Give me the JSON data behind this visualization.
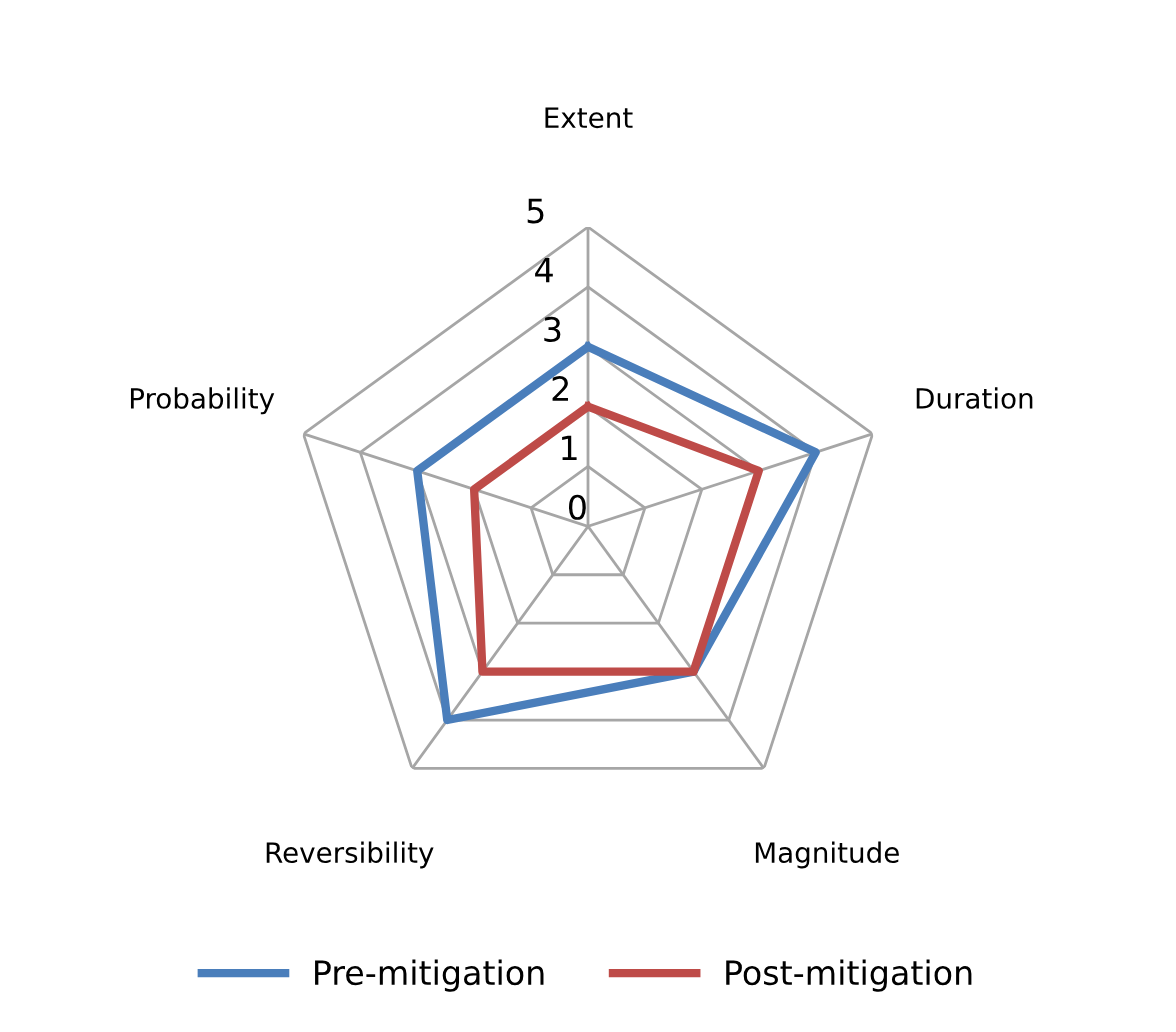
{
  "chart_data": {
    "type": "radar",
    "categories": [
      "Extent",
      "Duration",
      "Magnitude",
      "Reversibility",
      "Probability"
    ],
    "series": [
      {
        "name": "Pre-mitigation",
        "color": "#4a7ebb",
        "values": [
          3,
          4,
          3,
          4,
          3
        ]
      },
      {
        "name": "Post-mitigation",
        "color": "#be4b48",
        "values": [
          2,
          3,
          3,
          3,
          2
        ]
      }
    ],
    "ylim": [
      0,
      5
    ],
    "yticks": [
      0,
      1,
      2,
      3,
      4,
      5
    ],
    "grid": true,
    "legend": "bottom",
    "marker": "none",
    "line_style": "solid"
  }
}
